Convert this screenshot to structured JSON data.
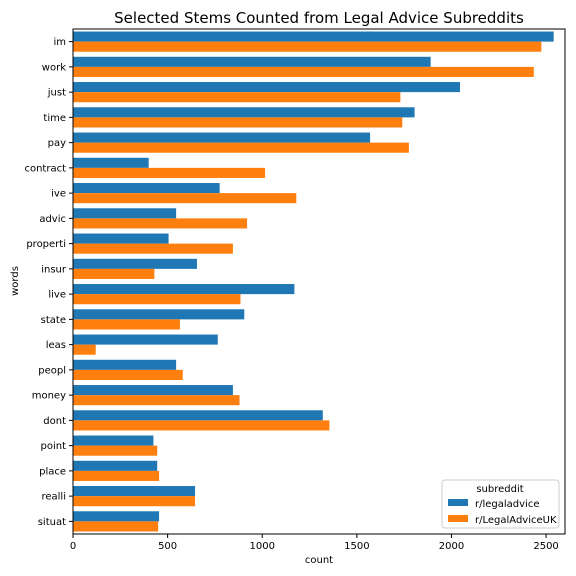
{
  "chart_data": {
    "type": "bar",
    "orientation": "horizontal",
    "title": "Selected Stems Counted from Legal Advice Subreddits",
    "xlabel": "count",
    "ylabel": "words",
    "xlim": [
      0,
      2600
    ],
    "xticks": [
      0,
      500,
      1000,
      1500,
      2000,
      2500
    ],
    "grid": false,
    "legend": {
      "title": "subreddit",
      "placement": "bottom-right"
    },
    "categories": [
      "im",
      "work",
      "just",
      "time",
      "pay",
      "contract",
      "ive",
      "advic",
      "properti",
      "insur",
      "live",
      "state",
      "leas",
      "peopl",
      "money",
      "dont",
      "point",
      "place",
      "realli",
      "situat"
    ],
    "series": [
      {
        "name": "r/legaladvice",
        "color": "#1f77b4",
        "values": [
          2540,
          1890,
          2045,
          1805,
          1570,
          400,
          775,
          545,
          505,
          655,
          1170,
          905,
          765,
          545,
          845,
          1320,
          425,
          445,
          645,
          455
        ]
      },
      {
        "name": "r/LegalAdviceUK",
        "color": "#ff7f0e",
        "values": [
          2475,
          2435,
          1730,
          1740,
          1775,
          1015,
          1180,
          920,
          845,
          430,
          885,
          565,
          120,
          580,
          880,
          1355,
          445,
          455,
          645,
          450
        ]
      }
    ]
  }
}
